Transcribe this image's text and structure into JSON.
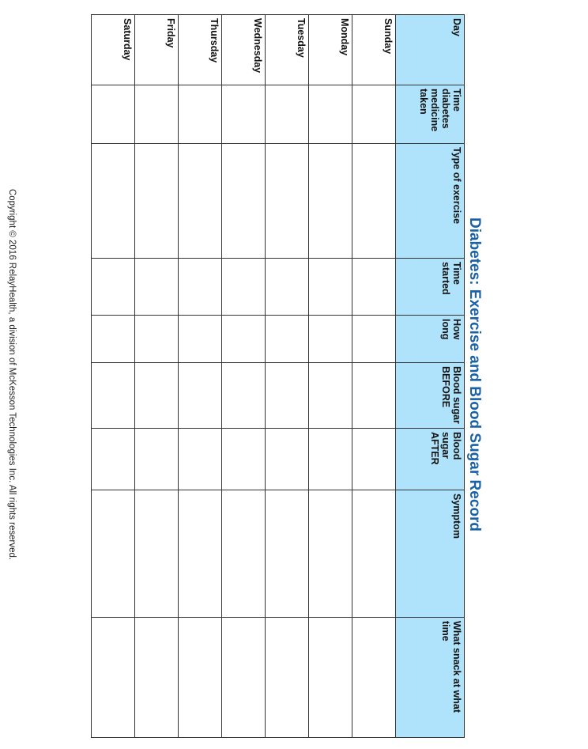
{
  "title": "Diabetes: Exercise and Blood Sugar Record",
  "columns": [
    "Day",
    "Time diabetes medicine taken",
    "Type of exercise",
    "Time started",
    "How long",
    "Blood sugar BEFORE",
    "Blood sugar AFTER",
    "Symptom",
    "What snack at what time"
  ],
  "days": [
    "Sunday",
    "Monday",
    "Tuesday",
    "Wednesday",
    "Thursday",
    "Friday",
    "Saturday"
  ],
  "footer": "Copyright © 2016 RelayHealth, a division of McKesson Technologies Inc. All rights reserved.",
  "colors": {
    "title": "#1a62a8",
    "header_bg": "#aee3fb",
    "border": "#333333"
  }
}
